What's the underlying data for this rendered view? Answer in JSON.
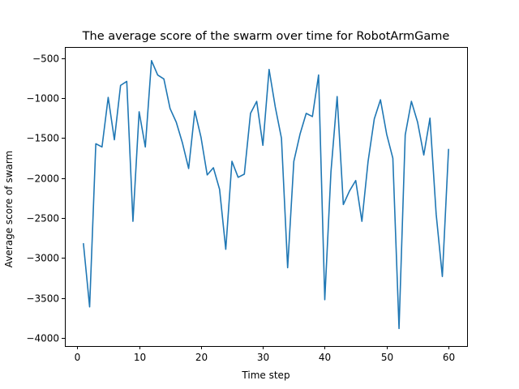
{
  "chart_data": {
    "type": "line",
    "title": "The average score of the swarm over time for RobotArmGame",
    "xlabel": "Time step",
    "ylabel": "Average score of swarm",
    "xlim": [
      -2,
      63
    ],
    "ylim": [
      -4100,
      -360
    ],
    "xticks": [
      0,
      10,
      20,
      30,
      40,
      50,
      60
    ],
    "yticks": [
      -4000,
      -3500,
      -3000,
      -2500,
      -2000,
      -1500,
      -1000,
      -500
    ],
    "xtick_labels": [
      "0",
      "10",
      "20",
      "30",
      "40",
      "50",
      "60"
    ],
    "ytick_labels": [
      "−4000",
      "−3500",
      "−3000",
      "−2500",
      "−2000",
      "−1500",
      "−1000",
      "−500"
    ],
    "grid": false,
    "color": "#1f77b4",
    "series": [
      {
        "x": [
          1,
          2,
          3,
          4,
          5,
          6,
          7,
          8,
          9,
          10,
          11,
          12,
          13,
          14,
          15,
          16,
          17,
          18,
          19,
          20,
          21,
          22,
          23,
          24,
          25,
          26,
          27,
          28,
          29,
          30,
          31,
          32,
          33,
          34,
          35,
          36,
          37,
          38,
          39,
          40,
          41,
          42,
          43,
          44,
          45,
          46,
          47,
          48,
          49,
          50,
          51,
          52,
          53,
          54,
          55,
          56,
          57,
          58,
          59,
          60
        ],
        "values": [
          -2820,
          -3610,
          -1570,
          -1610,
          -990,
          -1520,
          -840,
          -790,
          -2540,
          -1170,
          -1610,
          -530,
          -710,
          -760,
          -1130,
          -1300,
          -1560,
          -1880,
          -1160,
          -1490,
          -1960,
          -1870,
          -2140,
          -2890,
          -1790,
          -1990,
          -1950,
          -1190,
          -1040,
          -1590,
          -640,
          -1110,
          -1500,
          -3120,
          -1790,
          -1450,
          -1190,
          -1230,
          -710,
          -3520,
          -1920,
          -980,
          -2330,
          -2160,
          -2030,
          -2540,
          -1790,
          -1260,
          -1020,
          -1450,
          -1750,
          -3880,
          -1460,
          -1040,
          -1300,
          -1710,
          -1250,
          -2450,
          -3230,
          -1640
        ]
      }
    ]
  }
}
